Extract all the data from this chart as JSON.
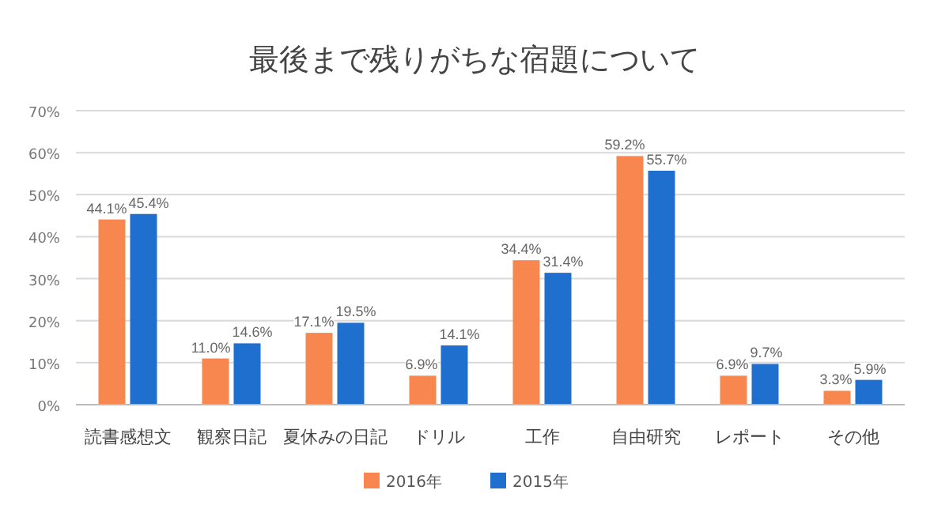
{
  "chart_data": {
    "type": "bar",
    "title": "最後まで残りがちな宿題について",
    "categories": [
      "読書感想文",
      "観察日記",
      "夏休みの日記",
      "ドリル",
      "工作",
      "自由研究",
      "レポート",
      "その他"
    ],
    "series": [
      {
        "name": "2016年",
        "color": "#f8874f",
        "values": [
          44.1,
          11.0,
          17.1,
          6.9,
          34.4,
          59.2,
          6.9,
          3.3
        ],
        "value_labels": [
          "44.1%",
          "11.0%",
          "17.1%",
          "6.9%",
          "34.4%",
          "59.2%",
          "6.9%",
          "3.3%"
        ]
      },
      {
        "name": "2015年",
        "color": "#1f6fce",
        "values": [
          45.4,
          14.6,
          19.5,
          14.1,
          31.4,
          55.7,
          9.7,
          5.9
        ],
        "value_labels": [
          "45.4%",
          "14.6%",
          "19.5%",
          "14.1%",
          "31.4%",
          "55.7%",
          "9.7%",
          "5.9%"
        ]
      }
    ],
    "ylim": [
      0,
      70
    ],
    "yticks": [
      {
        "value": 0,
        "label": "0%"
      },
      {
        "value": 10,
        "label": "10%"
      },
      {
        "value": 20,
        "label": "20%"
      },
      {
        "value": 30,
        "label": "30%"
      },
      {
        "value": 40,
        "label": "40%"
      },
      {
        "value": 50,
        "label": "50%"
      },
      {
        "value": 60,
        "label": "60%"
      },
      {
        "value": 70,
        "label": "70%"
      }
    ],
    "grid": "y",
    "legend": "bottom"
  }
}
